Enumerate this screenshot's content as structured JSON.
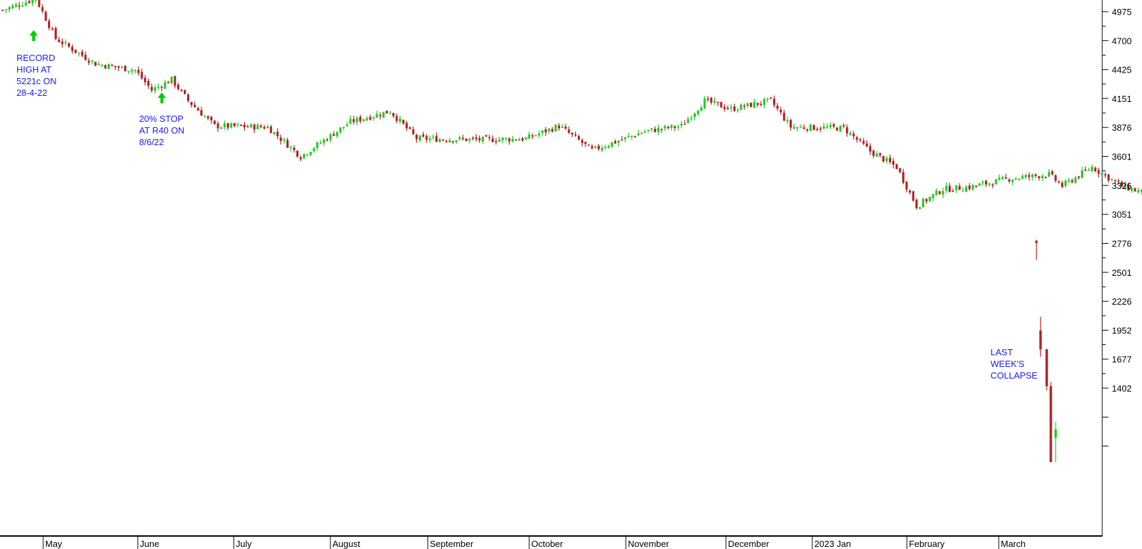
{
  "chart_data": {
    "type": "candlestick",
    "title": "",
    "xlabel": "",
    "ylabel": "",
    "ylim": [
      650,
      5250
    ],
    "y_ticks": [
      4975,
      4700,
      4425,
      4151,
      3876,
      3601,
      3326,
      3051,
      2776,
      2501,
      2226,
      1952,
      1677,
      1402
    ],
    "y_minor_ticks": [
      1127,
      852
    ],
    "months": [
      "May",
      "June",
      "July",
      "August",
      "September",
      "October",
      "November",
      "December",
      "2023 Jan",
      "February",
      "March"
    ],
    "colors": {
      "up": "#22cc22",
      "down": "#b22222",
      "annotation": "#1a1aff",
      "arrow": "#00cc00"
    },
    "price_path": [
      {
        "day": 0,
        "price": 4990
      },
      {
        "day": 10,
        "price": 5100
      },
      {
        "day": 16,
        "price": 4720
      },
      {
        "day": 28,
        "price": 4480
      },
      {
        "day": 40,
        "price": 4420
      },
      {
        "day": 45,
        "price": 4230
      },
      {
        "day": 51,
        "price": 4330
      },
      {
        "day": 56,
        "price": 4130
      },
      {
        "day": 64,
        "price": 3890
      },
      {
        "day": 80,
        "price": 3880
      },
      {
        "day": 90,
        "price": 3600
      },
      {
        "day": 105,
        "price": 3930
      },
      {
        "day": 117,
        "price": 4030
      },
      {
        "day": 125,
        "price": 3770
      },
      {
        "day": 145,
        "price": 3760
      },
      {
        "day": 158,
        "price": 3770
      },
      {
        "day": 168,
        "price": 3890
      },
      {
        "day": 178,
        "price": 3660
      },
      {
        "day": 194,
        "price": 3840
      },
      {
        "day": 205,
        "price": 3890
      },
      {
        "day": 212,
        "price": 4130
      },
      {
        "day": 220,
        "price": 4050
      },
      {
        "day": 232,
        "price": 4130
      },
      {
        "day": 238,
        "price": 3880
      },
      {
        "day": 254,
        "price": 3870
      },
      {
        "day": 262,
        "price": 3650
      },
      {
        "day": 270,
        "price": 3500
      },
      {
        "day": 276,
        "price": 3130
      },
      {
        "day": 284,
        "price": 3290
      },
      {
        "day": 292,
        "price": 3310
      },
      {
        "day": 304,
        "price": 3390
      },
      {
        "day": 316,
        "price": 3430
      },
      {
        "day": 320,
        "price": 3320
      },
      {
        "day": 329,
        "price": 3500
      },
      {
        "day": 338,
        "price": 3320
      },
      {
        "day": 350,
        "price": 3200
      },
      {
        "day": 356,
        "price": 3090
      },
      {
        "day": 366,
        "price": 3030
      },
      {
        "day": 370,
        "price": 2790
      }
    ],
    "final_candles": [
      {
        "label": "final-1",
        "open": 2800,
        "high": 2810,
        "low": 2620,
        "close": 2780
      },
      {
        "label": "final-2",
        "open": 1950,
        "high": 2080,
        "low": 1700,
        "close": 1770
      },
      {
        "label": "final-3",
        "open": 1770,
        "high": 1775,
        "low": 1380,
        "close": 1420
      },
      {
        "label": "final-4",
        "open": 1420,
        "high": 1460,
        "low": 700,
        "close": 700
      },
      {
        "label": "final-5",
        "open": 930,
        "high": 1080,
        "low": 700,
        "close": 1010
      }
    ],
    "annotations": {
      "record_high": [
        "RECORD",
        "HIGH AT",
        "5221c ON",
        "28-4-22"
      ],
      "stop_loss": [
        "20% STOP",
        "AT R40 ON",
        "8/6/22"
      ],
      "collapse": [
        "LAST",
        "WEEK'S",
        "COLLAPSE"
      ]
    }
  }
}
